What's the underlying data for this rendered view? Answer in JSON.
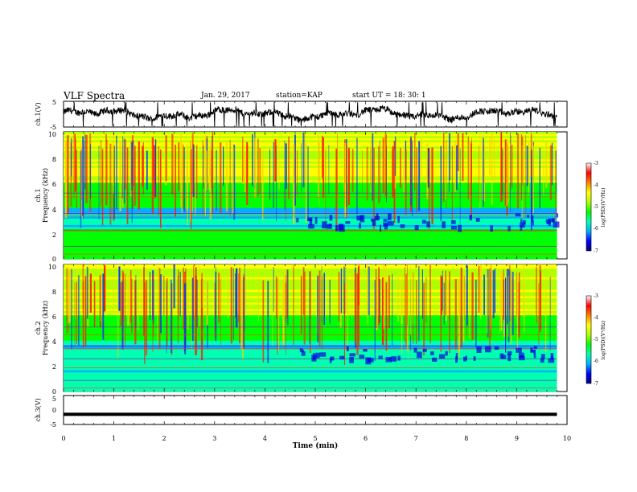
{
  "header": {
    "title": "VLF Spectra",
    "date": "Jan. 29, 2017",
    "station": "station=KAP",
    "start": "start  UT =   18: 30: 1"
  },
  "colors": {
    "spectrum": [
      "#000080",
      "#0000ff",
      "#00b0ff",
      "#00ffb0",
      "#00ff00",
      "#b0ff00",
      "#ffff00",
      "#ff8000",
      "#ff0000",
      "#ffffff"
    ]
  },
  "chart_data": [
    {
      "type": "line",
      "name": "ch1-waveform",
      "ylabel": "ch.1(V)",
      "ylim": [
        -5,
        5
      ],
      "yticks": [
        "5",
        "-5"
      ],
      "xlim": [
        0,
        10
      ],
      "trace": "irregular waveform around 0 V with frequent negative spikes"
    },
    {
      "type": "heatmap",
      "name": "ch1-spectrogram",
      "ylabel_line1": "ch.1",
      "ylabel_line2": "Frequency (kHz)",
      "ylim": [
        0,
        10
      ],
      "yticks": [
        "0",
        "2",
        "4",
        "6",
        "8",
        "10"
      ],
      "xlim": [
        0,
        9.8
      ],
      "colorbar": {
        "label": "log(PSD)(V²/Hz)",
        "range": [
          -7,
          -3
        ],
        "ticks": [
          "-3",
          "-4",
          "-5",
          "-6",
          "-7"
        ]
      }
    },
    {
      "type": "heatmap",
      "name": "ch2-spectrogram",
      "ylabel_line1": "ch.2",
      "ylabel_line2": "Frequency (kHz)",
      "ylim": [
        0,
        10
      ],
      "yticks": [
        "0",
        "2",
        "4",
        "6",
        "8",
        "10"
      ],
      "xlim": [
        0,
        9.8
      ],
      "colorbar": {
        "label": "log(PSD)(V²/Hz)",
        "range": [
          -7,
          -3
        ],
        "ticks": [
          "-3",
          "-4",
          "-5",
          "-6",
          "-7"
        ]
      }
    },
    {
      "type": "line",
      "name": "ch3-waveform",
      "ylabel": "ch.3(V)",
      "ylim": [
        -5,
        5
      ],
      "yticks": [
        "5",
        "0",
        "-5"
      ],
      "xlim": [
        0,
        10
      ],
      "xlabel": "Time (min)",
      "xticks": [
        "0",
        "1",
        "2",
        "3",
        "4",
        "5",
        "6",
        "7",
        "8",
        "9",
        "10"
      ],
      "level": -1.5
    }
  ]
}
